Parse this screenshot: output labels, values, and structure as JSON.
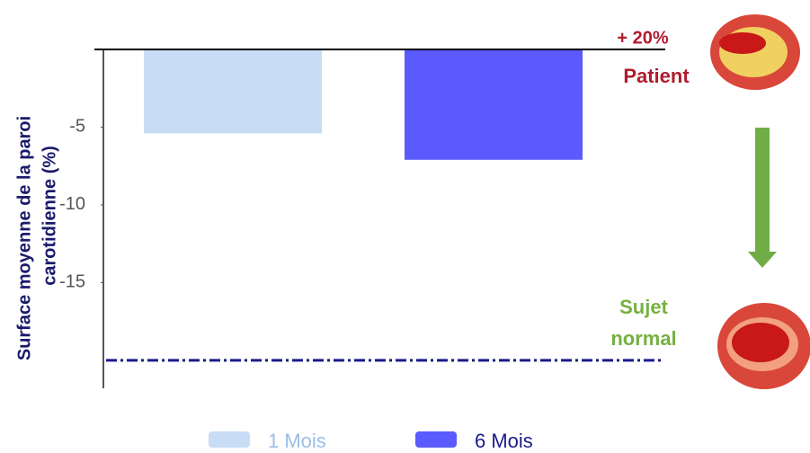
{
  "chart_data": {
    "type": "bar",
    "ylabel": [
      "Surface moyenne de la paroi",
      "carotidienne (%)"
    ],
    "categories": [
      null
    ],
    "series": [
      {
        "name": "1 Mois",
        "color": "#c9dcf5",
        "legend_text_color": "#9bbde8",
        "values": [
          -5.4
        ]
      },
      {
        "name": "6 Mois",
        "color": "#5a5aff",
        "legend_text_color": "#1a1a8c",
        "values": [
          -7.1
        ]
      }
    ],
    "ylim": [
      -21.8,
      0
    ],
    "yticks": [
      -5,
      -10,
      -15
    ],
    "reference_line": {
      "value": -20,
      "color": "#1a1a8c"
    },
    "annotations": {
      "increase": "+ 20%",
      "patient": "Patient",
      "normal": [
        "Sujet",
        "normal"
      ]
    }
  }
}
